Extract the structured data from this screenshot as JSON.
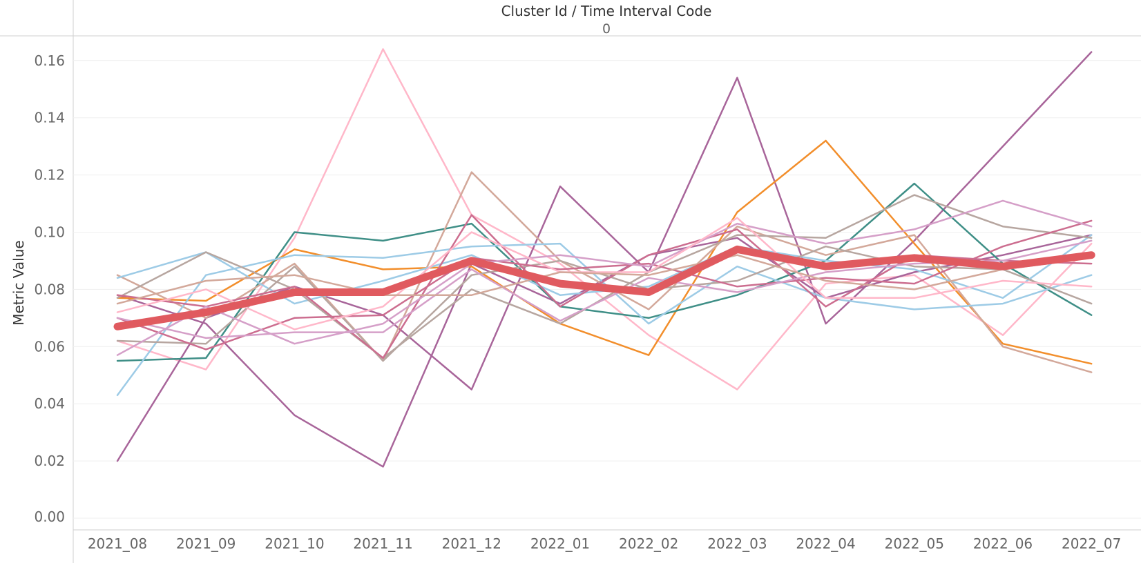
{
  "header": {
    "title": "Cluster Id  /  Time Interval Code",
    "value": "0"
  },
  "chart_data": {
    "type": "line",
    "title": "",
    "xlabel": "",
    "ylabel": "Metric Value",
    "ylim": [
      0,
      0.17
    ],
    "yticks": [
      "0.00",
      "0.02",
      "0.04",
      "0.06",
      "0.08",
      "0.10",
      "0.12",
      "0.14",
      "0.16"
    ],
    "categories": [
      "2021_08",
      "2021_09",
      "2021_10",
      "2021_11",
      "2021_12",
      "2022_01",
      "2022_02",
      "2022_03",
      "2022_04",
      "2022_05",
      "2022_06",
      "2022_07"
    ],
    "grid": true,
    "legend": "none",
    "series": [
      {
        "color": "#ffb7c9",
        "width": 2.5,
        "values": [
          0.062,
          0.052,
          0.098,
          0.164,
          0.106,
          0.089,
          0.064,
          0.045,
          0.082,
          0.085,
          0.064,
          0.096
        ]
      },
      {
        "color": "#a8659a",
        "width": 2.5,
        "values": [
          0.02,
          0.07,
          0.081,
          0.071,
          0.045,
          0.116,
          0.086,
          0.154,
          0.068,
          0.097,
          0.13,
          0.163
        ]
      },
      {
        "color": "#a8659a",
        "width": 2.5,
        "values": [
          0.078,
          0.068,
          0.036,
          0.018,
          0.089,
          0.075,
          0.092,
          0.098,
          0.077,
          0.086,
          0.092,
          0.099
        ]
      },
      {
        "color": "#f28e2b",
        "width": 2.5,
        "values": [
          0.077,
          0.076,
          0.094,
          0.087,
          0.088,
          0.068,
          0.057,
          0.107,
          0.132,
          0.096,
          0.061,
          0.054
        ]
      },
      {
        "color": "#3f8f87",
        "width": 2.5,
        "values": [
          0.055,
          0.056,
          0.1,
          0.097,
          0.103,
          0.074,
          0.07,
          0.078,
          0.09,
          0.117,
          0.089,
          0.071
        ]
      },
      {
        "color": "#d3a89a",
        "width": 2.5,
        "values": [
          0.085,
          0.07,
          0.089,
          0.055,
          0.121,
          0.09,
          0.073,
          0.102,
          0.092,
          0.099,
          0.06,
          0.051
        ]
      },
      {
        "color": "#9dcbe6",
        "width": 2.5,
        "values": [
          0.043,
          0.085,
          0.092,
          0.091,
          0.095,
          0.096,
          0.068,
          0.088,
          0.077,
          0.073,
          0.075,
          0.085
        ]
      },
      {
        "color": "#9dcbe6",
        "width": 2.5,
        "values": [
          0.084,
          0.093,
          0.075,
          0.083,
          0.092,
          0.078,
          0.081,
          0.095,
          0.09,
          0.087,
          0.077,
          0.099
        ]
      },
      {
        "color": "#b7a6a0",
        "width": 2.5,
        "values": [
          0.077,
          0.093,
          0.08,
          0.056,
          0.08,
          0.068,
          0.086,
          0.099,
          0.098,
          0.113,
          0.102,
          0.098
        ]
      },
      {
        "color": "#b7a6a0",
        "width": 2.5,
        "values": [
          0.062,
          0.061,
          0.088,
          0.055,
          0.085,
          0.09,
          0.08,
          0.083,
          0.095,
          0.088,
          0.087,
          0.075
        ]
      },
      {
        "color": "#cc6d8f",
        "width": 2.5,
        "values": [
          0.07,
          0.059,
          0.07,
          0.071,
          0.091,
          0.087,
          0.089,
          0.081,
          0.084,
          0.082,
          0.095,
          0.104
        ]
      },
      {
        "color": "#cc6d8f",
        "width": 2.5,
        "values": [
          0.078,
          0.074,
          0.081,
          0.056,
          0.106,
          0.074,
          0.092,
          0.101,
          0.074,
          0.092,
          0.09,
          0.089
        ]
      },
      {
        "color": "#d59fc8",
        "width": 2.5,
        "values": [
          0.057,
          0.074,
          0.061,
          0.068,
          0.089,
          0.092,
          0.088,
          0.103,
          0.096,
          0.101,
          0.111,
          0.102
        ]
      },
      {
        "color": "#d59fc8",
        "width": 2.5,
        "values": [
          0.07,
          0.063,
          0.065,
          0.065,
          0.087,
          0.069,
          0.084,
          0.079,
          0.086,
          0.089,
          0.09,
          0.097
        ]
      },
      {
        "color": "#ffb7c9",
        "width": 2.5,
        "values": [
          0.072,
          0.08,
          0.066,
          0.074,
          0.1,
          0.086,
          0.086,
          0.105,
          0.077,
          0.077,
          0.083,
          0.081
        ]
      },
      {
        "color": "#d3a89a",
        "width": 2.5,
        "values": [
          0.075,
          0.083,
          0.085,
          0.078,
          0.078,
          0.086,
          0.085,
          0.092,
          0.083,
          0.08,
          0.087,
          0.091
        ]
      },
      {
        "color": "#e05a5f",
        "width": 11,
        "values": [
          0.067,
          0.072,
          0.079,
          0.079,
          0.09,
          0.082,
          0.079,
          0.094,
          0.088,
          0.091,
          0.088,
          0.092
        ]
      }
    ]
  }
}
